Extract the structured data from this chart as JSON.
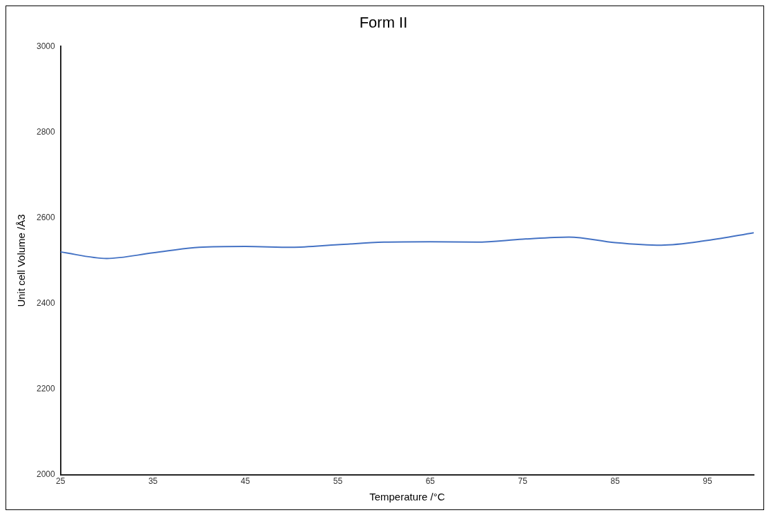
{
  "chart_data": {
    "type": "line",
    "title": "Form II",
    "xlabel": "Temperature /°C",
    "ylabel": "Unit cell Volume /Å3",
    "x": [
      25,
      30,
      35,
      40,
      45,
      50,
      55,
      60,
      65,
      70,
      75,
      80,
      85,
      90,
      95,
      100
    ],
    "series": [
      {
        "color": "#4472c4",
        "values": [
          2520,
          2505,
          2518,
          2531,
          2533,
          2531,
          2537,
          2543,
          2544,
          2543,
          2550,
          2555,
          2542,
          2536,
          2547,
          2565
        ]
      }
    ],
    "xlim": [
      25,
      100
    ],
    "xticks": [
      25,
      35,
      45,
      55,
      65,
      75,
      85,
      95
    ],
    "ylim": [
      2000,
      3000
    ],
    "yticks": [
      2000,
      2200,
      2400,
      2600,
      2800,
      3000
    ],
    "grid": false,
    "legend": false,
    "marker": "none",
    "line_style": "solid"
  }
}
